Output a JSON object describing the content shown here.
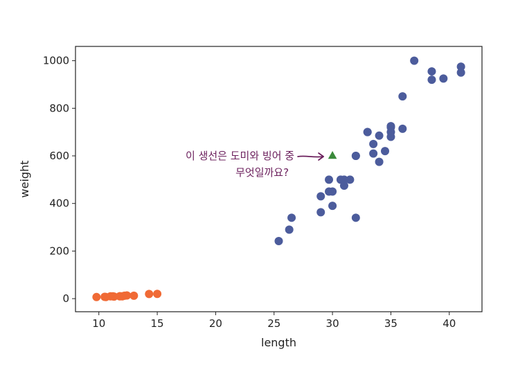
{
  "chart_data": {
    "type": "scatter",
    "title": "",
    "xlabel": "length",
    "ylabel": "weight",
    "xlim": [
      8.0,
      42.8
    ],
    "ylim": [
      -55,
      1060
    ],
    "xticks": [
      10,
      15,
      20,
      25,
      30,
      35,
      40
    ],
    "yticks": [
      0,
      200,
      400,
      600,
      800,
      1000
    ],
    "grid": false,
    "legend": "none",
    "series": [
      {
        "color": "#4c5c9c",
        "marker": "circle",
        "points": [
          [
            25.4,
            242
          ],
          [
            26.3,
            290
          ],
          [
            26.5,
            340
          ],
          [
            29.0,
            363
          ],
          [
            29.0,
            430
          ],
          [
            29.7,
            450
          ],
          [
            29.7,
            500
          ],
          [
            30.0,
            390
          ],
          [
            30.0,
            450
          ],
          [
            30.7,
            500
          ],
          [
            31.0,
            475
          ],
          [
            31.0,
            500
          ],
          [
            31.5,
            500
          ],
          [
            32.0,
            340
          ],
          [
            32.0,
            600
          ],
          [
            32.0,
            600
          ],
          [
            33.0,
            700
          ],
          [
            33.0,
            700
          ],
          [
            33.5,
            610
          ],
          [
            33.5,
            650
          ],
          [
            34.0,
            575
          ],
          [
            34.0,
            685
          ],
          [
            34.5,
            620
          ],
          [
            35.0,
            680
          ],
          [
            35.0,
            700
          ],
          [
            35.0,
            725
          ],
          [
            35.0,
            720
          ],
          [
            36.0,
            714
          ],
          [
            36.0,
            850
          ],
          [
            37.0,
            1000
          ],
          [
            38.5,
            920
          ],
          [
            38.5,
            955
          ],
          [
            39.5,
            925
          ],
          [
            41.0,
            975
          ],
          [
            41.0,
            950
          ]
        ]
      },
      {
        "color": "#f06a35",
        "marker": "circle",
        "points": [
          [
            9.8,
            6.7
          ],
          [
            10.5,
            7.5
          ],
          [
            10.6,
            7.0
          ],
          [
            11.0,
            9.7
          ],
          [
            11.2,
            9.8
          ],
          [
            11.3,
            8.7
          ],
          [
            11.8,
            10.0
          ],
          [
            11.8,
            9.9
          ],
          [
            12.0,
            9.8
          ],
          [
            12.2,
            12.2
          ],
          [
            12.4,
            13.4
          ],
          [
            13.0,
            12.2
          ],
          [
            14.3,
            19.7
          ],
          [
            15.0,
            19.9
          ]
        ]
      },
      {
        "color": "#3a8a3a",
        "marker": "triangle",
        "points": [
          [
            30,
            600
          ]
        ]
      }
    ],
    "annotation": {
      "lines": [
        "이 생선은 도미와 빙어 중",
        "무엇일까요?"
      ],
      "arrow_to": [
        30,
        600
      ],
      "color": "#6b1f5c"
    }
  }
}
